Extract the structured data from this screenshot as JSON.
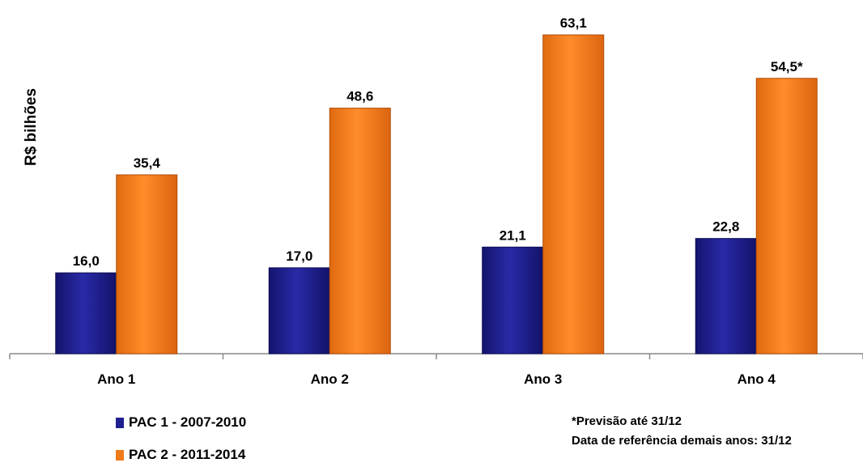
{
  "chart_data": {
    "type": "bar",
    "ylabel": "R$ bilhões",
    "categories": [
      "Ano 1",
      "Ano 2",
      "Ano 3",
      "Ano 4"
    ],
    "series": [
      {
        "name": "PAC 1 - 2007-2010",
        "values": [
          16.0,
          17.0,
          21.1,
          22.8
        ],
        "labels": [
          "16,0",
          "17,0",
          "21,1",
          "22,8"
        ],
        "color": "#1f1f8f"
      },
      {
        "name": "PAC 2 - 2011-2014",
        "values": [
          35.4,
          48.6,
          63.1,
          54.5
        ],
        "labels": [
          "35,4",
          "48,6",
          "63,1",
          "54,5*"
        ],
        "color": "#f07a1a"
      }
    ],
    "ylim": [
      0,
      70
    ],
    "grid": false,
    "legend_position": "bottom-left",
    "notes": [
      "*Previsão até 31/12",
      "Data de referência demais anos: 31/12"
    ]
  }
}
